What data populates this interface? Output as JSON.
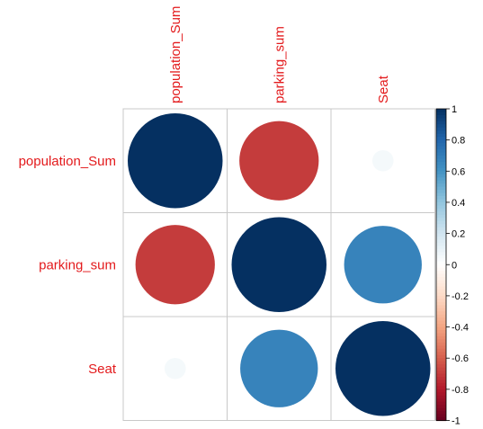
{
  "chart_data": {
    "type": "heatmap",
    "variables": [
      "population_Sum",
      "parking_sum",
      "Seat"
    ],
    "matrix": [
      [
        1.0,
        -0.7,
        0.05
      ],
      [
        -0.7,
        1.0,
        0.67
      ],
      [
        0.05,
        0.67,
        1.0
      ]
    ],
    "colorbar": {
      "range": [
        -1,
        1
      ],
      "ticks": [
        "1",
        "0.8",
        "0.6",
        "0.4",
        "0.2",
        "0",
        "-0.2",
        "-0.4",
        "-0.6",
        "-0.8",
        "-1"
      ]
    },
    "label_color": "#e31a1c",
    "grid": true
  }
}
